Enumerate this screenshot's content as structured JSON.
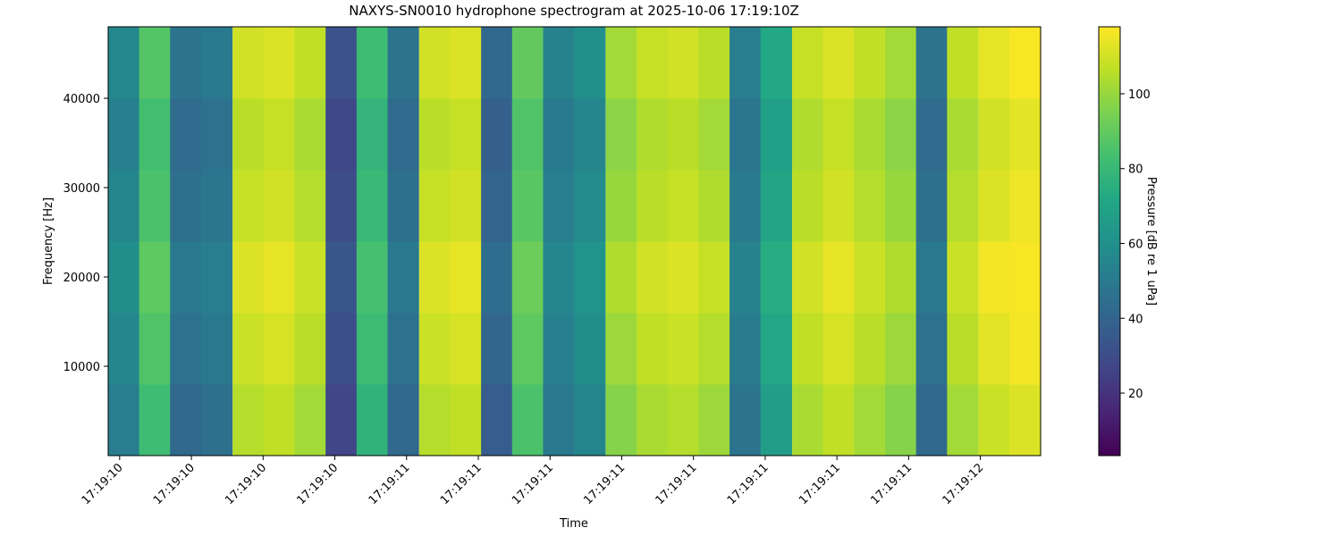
{
  "chart_data": {
    "type": "heatmap",
    "title": "NAXYS-SN0010 hydrophone spectrogram at 2025-10-06 17:19:10Z",
    "xlabel": "Time",
    "ylabel": "Frequency [Hz]",
    "colorbar_label": "Pressure [dB re 1 uPa]",
    "colormap": "viridis",
    "x": [
      10.507,
      10.561,
      10.615,
      10.669,
      10.724,
      10.778,
      10.832,
      10.886,
      10.94,
      10.994,
      11.049,
      11.103,
      11.157,
      11.211,
      11.265,
      11.319,
      11.374,
      11.428,
      11.482,
      11.536,
      11.59,
      11.644,
      11.699,
      11.753,
      11.807,
      11.861,
      11.915,
      11.969,
      12.024,
      12.078
    ],
    "y": [
      4000,
      12000,
      20000,
      28000,
      36000,
      44000
    ],
    "z": [
      [
        52,
        82,
        42,
        45,
        105,
        107,
        102,
        27,
        77,
        42,
        105,
        107,
        37,
        85,
        49,
        55,
        97,
        103,
        105,
        101,
        47,
        67,
        103,
        107,
        102,
        97,
        42,
        102,
        109,
        112
      ],
      [
        56,
        86,
        46,
        49,
        109,
        111,
        106,
        31,
        81,
        46,
        109,
        111,
        41,
        89,
        53,
        59,
        101,
        107,
        109,
        105,
        51,
        71,
        107,
        111,
        106,
        101,
        46,
        106,
        113,
        116
      ],
      [
        59,
        89,
        49,
        52,
        112,
        114,
        109,
        34,
        84,
        49,
        112,
        114,
        44,
        92,
        56,
        62,
        104,
        110,
        112,
        108,
        54,
        74,
        110,
        114,
        109,
        104,
        49,
        109,
        116,
        117
      ],
      [
        55,
        85,
        45,
        48,
        108,
        110,
        105,
        30,
        80,
        45,
        108,
        110,
        40,
        88,
        52,
        58,
        100,
        106,
        108,
        104,
        50,
        70,
        106,
        110,
        105,
        100,
        45,
        105,
        112,
        115
      ],
      [
        53,
        83,
        43,
        46,
        106,
        108,
        103,
        28,
        78,
        43,
        106,
        108,
        38,
        86,
        50,
        56,
        98,
        104,
        106,
        102,
        48,
        68,
        104,
        108,
        103,
        98,
        43,
        103,
        110,
        113
      ],
      [
        57,
        87,
        47,
        50,
        110,
        112,
        107,
        32,
        82,
        47,
        110,
        112,
        42,
        90,
        54,
        60,
        102,
        108,
        110,
        106,
        52,
        72,
        108,
        112,
        107,
        102,
        47,
        107,
        114,
        117
      ]
    ],
    "xlim": [
      10.48,
      12.105
    ],
    "ylim": [
      0,
      48000
    ],
    "clim": [
      3.3,
      117.9
    ],
    "xticks": [
      {
        "value": 10.5,
        "label": "17:19:10"
      },
      {
        "value": 10.625,
        "label": "17:19:10"
      },
      {
        "value": 10.75,
        "label": "17:19:10"
      },
      {
        "value": 10.875,
        "label": "17:19:10"
      },
      {
        "value": 11.0,
        "label": "17:19:11"
      },
      {
        "value": 11.125,
        "label": "17:19:11"
      },
      {
        "value": 11.25,
        "label": "17:19:11"
      },
      {
        "value": 11.375,
        "label": "17:19:11"
      },
      {
        "value": 11.5,
        "label": "17:19:11"
      },
      {
        "value": 11.625,
        "label": "17:19:11"
      },
      {
        "value": 11.75,
        "label": "17:19:11"
      },
      {
        "value": 11.875,
        "label": "17:19:11"
      },
      {
        "value": 12.0,
        "label": "17:19:12"
      }
    ],
    "yticks": [
      10000,
      20000,
      30000,
      40000
    ],
    "cticks": [
      20,
      40,
      60,
      80,
      100
    ]
  }
}
